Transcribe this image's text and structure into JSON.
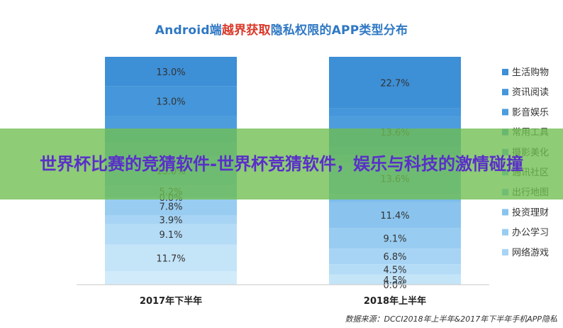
{
  "title": {
    "prefix": "Android端",
    "highlight": "越界获取",
    "suffix": "隐私权限的APP类型分布"
  },
  "overlay": {
    "text": "世界杯比赛的竞猜软件-世界杯竞猜软件，娱乐与科技的激情碰撞",
    "color": "#6ebe50"
  },
  "source": "数据来源：DCCI2018年上半年&2017年下半年手机APP隐私",
  "chart_data": {
    "type": "bar",
    "stacked": true,
    "categories": [
      "2017年下半年",
      "2018年上半年"
    ],
    "series": [
      {
        "name": "生活购物",
        "color": "#3d8fd6",
        "values": [
          13.0,
          22.7
        ]
      },
      {
        "name": "资讯阅读",
        "color": "#4596da",
        "values": [
          13.0,
          null
        ]
      },
      {
        "name": "影音娱乐",
        "color": "#4d9ddd",
        "values": [
          null,
          13.6
        ]
      },
      {
        "name": "常用工具",
        "color": "#56a4e0",
        "values": [
          null,
          null
        ]
      },
      {
        "name": "摄影美化",
        "color": "#62ace4",
        "values": [
          null,
          null
        ]
      },
      {
        "name": "通讯社区",
        "color": "#6fb4e7",
        "values": [
          13.0,
          13.6
        ]
      },
      {
        "name": "出行地图",
        "color": "#7dbceb",
        "values": [
          5.2,
          null
        ]
      },
      {
        "name": "投资理财",
        "color": "#8ac4ee",
        "values": [
          0.0,
          11.4
        ]
      },
      {
        "name": "办公学习",
        "color": "#98ccf1",
        "values": [
          7.8,
          9.1
        ]
      },
      {
        "name": "网络游戏",
        "color": "#a7d4f4",
        "values": [
          3.9,
          6.8
        ]
      },
      {
        "name": "",
        "color": "#b5dcf6",
        "values": [
          9.1,
          4.5
        ]
      },
      {
        "name": "",
        "color": "#c4e4f8",
        "values": [
          11.7,
          4.5
        ]
      },
      {
        "name": "",
        "color": "#d2ebfa",
        "values": [
          null,
          0.0
        ]
      }
    ],
    "ylim": [
      0,
      100
    ],
    "legend_position": "right",
    "grid": false
  }
}
